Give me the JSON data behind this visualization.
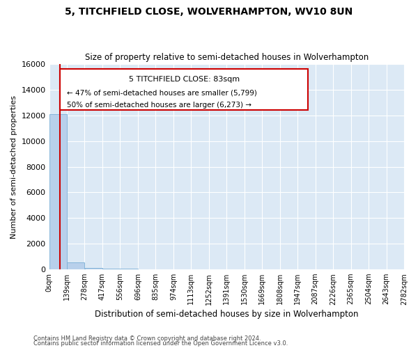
{
  "title": "5, TITCHFIELD CLOSE, WOLVERHAMPTON, WV10 8UN",
  "subtitle": "Size of property relative to semi-detached houses in Wolverhampton",
  "xlabel": "Distribution of semi-detached houses by size in Wolverhampton",
  "ylabel": "Number of semi-detached properties",
  "footnote1": "Contains HM Land Registry data © Crown copyright and database right 2024.",
  "footnote2": "Contains public sector information licensed under the Open Government Licence v3.0.",
  "annotation_line1": "5 TITCHFIELD CLOSE: 83sqm",
  "annotation_line2": "← 47% of semi-detached houses are smaller (5,799)",
  "annotation_line3": "50% of semi-detached houses are larger (6,273) →",
  "bar_values": [
    12072,
    534,
    108,
    62,
    42,
    28,
    22,
    18,
    14,
    10,
    8,
    6,
    5,
    4,
    3,
    2,
    2,
    1,
    1,
    1
  ],
  "bin_edges": [
    0,
    139,
    278,
    417,
    556,
    696,
    835,
    974,
    1113,
    1252,
    1391,
    1530,
    1669,
    1808,
    1947,
    2087,
    2226,
    2365,
    2504,
    2643,
    2782
  ],
  "x_tick_labels": [
    "0sqm",
    "139sqm",
    "278sqm",
    "417sqm",
    "556sqm",
    "696sqm",
    "835sqm",
    "974sqm",
    "1113sqm",
    "1252sqm",
    "1391sqm",
    "1530sqm",
    "1669sqm",
    "1808sqm",
    "1947sqm",
    "2087sqm",
    "2226sqm",
    "2365sqm",
    "2504sqm",
    "2643sqm",
    "2782sqm"
  ],
  "property_size": 83,
  "bar_color": "#b8d0eb",
  "bar_edge_color": "#7aaed6",
  "red_line_color": "#cc0000",
  "annotation_box_color": "#cc0000",
  "background_color": "#dce9f5",
  "ylim": [
    0,
    16000
  ],
  "yticks": [
    0,
    2000,
    4000,
    6000,
    8000,
    10000,
    12000,
    14000,
    16000
  ]
}
